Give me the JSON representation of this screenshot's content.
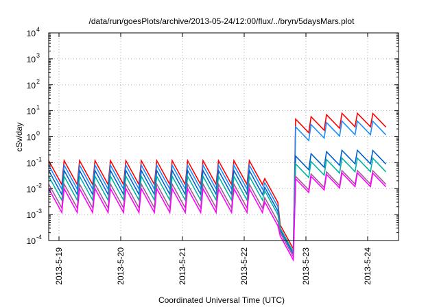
{
  "chart_data": {
    "type": "line",
    "title": "/data/run/goesPlots/archive/2013-05-24/12:00/flux/../bryn/5daysMars.plot",
    "xlabel": "Coordinated Universal Time (UTC)",
    "ylabel": "cSv/day",
    "yscale": "log",
    "xlim": [
      "2013-05-18T20:00",
      "2013-05-24T12:00"
    ],
    "ylim": [
      0.0001,
      10000
    ],
    "grid": true,
    "legend": "none",
    "x_ticks": [
      "2013-5-19",
      "2013-5-20",
      "2013-5-21",
      "2013-5-22",
      "2013-5-23",
      "2013-5-24"
    ],
    "y_ticks": [
      {
        "base": "10",
        "exp": "-4"
      },
      {
        "base": "10",
        "exp": "-3"
      },
      {
        "base": "10",
        "exp": "-2"
      },
      {
        "base": "10",
        "exp": "-1"
      },
      {
        "base": "10",
        "exp": "0"
      },
      {
        "base": "10",
        "exp": "1"
      },
      {
        "base": "10",
        "exp": "2"
      },
      {
        "base": "10",
        "exp": "3"
      },
      {
        "base": "10",
        "exp": "4"
      }
    ],
    "sawtooth_period_hours": 6,
    "series": [
      {
        "color": "#ff0000",
        "pre_peak": 0.12,
        "post_peak": 8,
        "dip_min": 0.0004
      },
      {
        "color": "#1a8cff",
        "pre_peak": 0.08,
        "post_peak": 4,
        "dip_min": 0.0003
      },
      {
        "color": "#005fd0",
        "pre_peak": 0.05,
        "post_peak": 0.3,
        "dip_min": 0.00025
      },
      {
        "color": "#00b4a0",
        "pre_peak": 0.03,
        "post_peak": 0.15,
        "dip_min": 0.0003
      },
      {
        "color": "#a05a96",
        "pre_peak": 0.015,
        "post_peak": 0.05,
        "dip_min": 0.0002
      },
      {
        "color": "#ff00ff",
        "pre_peak": 0.01,
        "post_peak": 0.04,
        "dip_min": 0.00015
      }
    ],
    "points": {
      "times": [
        "2013-05-18T20:00",
        "2013-05-19T02:00",
        "2013-05-19T08:00",
        "2013-05-19T14:00",
        "2013-05-19T20:00",
        "2013-05-20T02:00",
        "2013-05-20T08:00",
        "2013-05-20T14:00",
        "2013-05-20T20:00",
        "2013-05-21T02:00",
        "2013-05-21T08:00",
        "2013-05-21T14:00",
        "2013-05-21T20:00",
        "2013-05-22T02:00",
        "2013-05-22T08:00",
        "2013-05-22T14:00",
        "2013-05-22T16:00",
        "2013-05-23T02:00",
        "2013-05-23T08:00",
        "2013-05-23T14:00",
        "2013-05-23T20:00",
        "2013-05-24T02:00",
        "2013-05-24T08:00",
        "2013-05-24T12:00"
      ]
    }
  }
}
